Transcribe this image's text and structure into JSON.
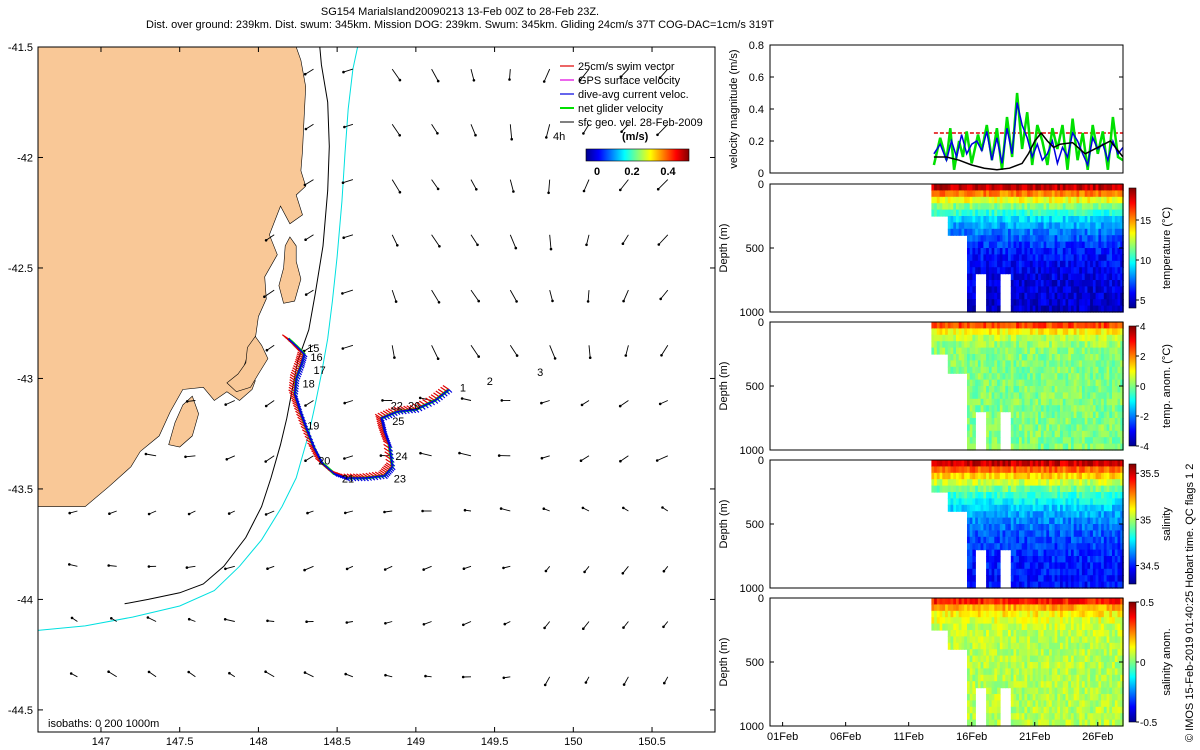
{
  "header": {
    "title_line1": "SG154 MarialsIand20090213 13-Feb 00Z to 28-Feb 23Z.",
    "title_line2": "Dist. over ground: 239km. Dist. swum: 345km. Mission DOG: 239km. Swum: 345km. Gliding 24cm/s 37T COG-DAC=1cm/s 319T"
  },
  "credit": "© IMOS 15-Feb-2019 01:40:25 Hobart time. QC flags 1 2",
  "colors": {
    "land": "#F9C897",
    "isobath_200": "#000000",
    "isobath_1000": "#00E0E0",
    "swim_vector": "#E00000",
    "gps_velocity": "#E000E0",
    "current": "#0000E0",
    "glider_velocity": "#00E000",
    "sfc_geo": "#000000"
  },
  "chart_data": [
    {
      "type": "map",
      "xlim": [
        146.6,
        150.9
      ],
      "ylim": [
        -44.6,
        -41.5
      ],
      "xticks": [
        147,
        147.5,
        148,
        148.5,
        149,
        149.5,
        150,
        150.5
      ],
      "xtick_labels": [
        "147",
        "147.5",
        "148",
        "148.5",
        "149",
        "149.5",
        "150",
        "150.5"
      ],
      "yticks": [
        -41.5,
        -42,
        -42.5,
        -43,
        -43.5,
        -44,
        -44.5
      ],
      "ytick_labels": [
        "-41.5",
        "-42",
        "-42.5",
        "-43",
        "-43.5",
        "-44",
        "-44.5"
      ],
      "legend": [
        {
          "label": "25cm/s swim vector",
          "color": "#E00000"
        },
        {
          "label": "GPS surface velocity",
          "color": "#E000E0"
        },
        {
          "label": "dive-avg current veloc.",
          "color": "#0000E0"
        },
        {
          "label": "net glider velocity",
          "color": "#00E000"
        },
        {
          "label": "sfc geo. vel. 28-Feb-2009",
          "color": "#000000"
        }
      ],
      "scale_arrow_label": "4h",
      "colorbar": {
        "label": "(m/s)",
        "ticks": [
          0,
          0.2,
          0.4
        ],
        "tick_labels": [
          "0",
          "0.2",
          "0.4"
        ],
        "range": [
          0,
          0.5
        ]
      },
      "isobaths_label": "isobaths: 0   200  1000m",
      "track": [
        [
          148.19,
          -42.82
        ],
        [
          148.25,
          -42.86
        ],
        [
          148.29,
          -42.89
        ],
        [
          148.27,
          -42.94
        ],
        [
          148.24,
          -43.0
        ],
        [
          148.23,
          -43.07
        ],
        [
          148.26,
          -43.14
        ],
        [
          148.3,
          -43.22
        ],
        [
          148.35,
          -43.31
        ],
        [
          148.4,
          -43.38
        ],
        [
          148.48,
          -43.43
        ],
        [
          148.56,
          -43.45
        ],
        [
          148.68,
          -43.45
        ],
        [
          148.8,
          -43.44
        ],
        [
          148.85,
          -43.4
        ],
        [
          148.83,
          -43.3
        ],
        [
          148.8,
          -43.24
        ],
        [
          148.78,
          -43.18
        ],
        [
          148.88,
          -43.15
        ],
        [
          149.0,
          -43.14
        ],
        [
          149.12,
          -43.1
        ],
        [
          149.21,
          -43.05
        ]
      ],
      "day_labels": [
        {
          "text": "1",
          "lon": 149.28,
          "lat": -43.06
        },
        {
          "text": "2",
          "lon": 149.45,
          "lat": -43.03
        },
        {
          "text": "3",
          "lon": 149.77,
          "lat": -42.99
        },
        {
          "text": "15",
          "lon": 148.31,
          "lat": -42.88
        },
        {
          "text": "16",
          "lon": 148.33,
          "lat": -42.92
        },
        {
          "text": "17",
          "lon": 148.35,
          "lat": -42.98
        },
        {
          "text": "18",
          "lon": 148.28,
          "lat": -43.04
        },
        {
          "text": "19",
          "lon": 148.31,
          "lat": -43.23
        },
        {
          "text": "20",
          "lon": 148.38,
          "lat": -43.39
        },
        {
          "text": "21",
          "lon": 148.53,
          "lat": -43.47
        },
        {
          "text": "22",
          "lon": 148.84,
          "lat": -43.14
        },
        {
          "text": "23",
          "lon": 148.86,
          "lat": -43.47
        },
        {
          "text": "24",
          "lon": 148.87,
          "lat": -43.37
        },
        {
          "text": "25",
          "lon": 148.85,
          "lat": -43.21
        },
        {
          "text": "26",
          "lon": 148.95,
          "lat": -43.14
        }
      ],
      "coast": [
        [
          146.6,
          -41.5
        ],
        [
          148.24,
          -41.5
        ],
        [
          148.27,
          -41.56
        ],
        [
          148.3,
          -41.68
        ],
        [
          148.29,
          -41.82
        ],
        [
          148.28,
          -41.97
        ],
        [
          148.27,
          -42.06
        ],
        [
          148.3,
          -42.13
        ],
        [
          148.24,
          -42.17
        ],
        [
          148.28,
          -42.26
        ],
        [
          148.2,
          -42.3
        ],
        [
          148.14,
          -42.22
        ],
        [
          148.07,
          -42.35
        ],
        [
          148.12,
          -42.44
        ],
        [
          148.04,
          -42.54
        ],
        [
          148.05,
          -42.64
        ],
        [
          148.0,
          -42.72
        ],
        [
          147.98,
          -42.82
        ],
        [
          147.94,
          -42.88
        ],
        [
          147.9,
          -42.96
        ],
        [
          147.98,
          -43.01
        ],
        [
          147.96,
          -43.05
        ],
        [
          147.88,
          -43.1
        ],
        [
          147.8,
          -43.06
        ],
        [
          147.72,
          -43.1
        ],
        [
          147.65,
          -43.04
        ],
        [
          147.52,
          -43.05
        ],
        [
          147.44,
          -43.15
        ],
        [
          147.37,
          -43.26
        ],
        [
          147.25,
          -43.33
        ],
        [
          147.19,
          -43.4
        ],
        [
          147.05,
          -43.49
        ],
        [
          146.9,
          -43.58
        ],
        [
          146.6,
          -43.58
        ]
      ],
      "islands": [
        [
          [
            148.17,
            -42.4
          ],
          [
            148.2,
            -42.36
          ],
          [
            148.24,
            -42.4
          ],
          [
            148.24,
            -42.47
          ],
          [
            148.27,
            -42.55
          ],
          [
            148.23,
            -42.65
          ],
          [
            148.16,
            -42.66
          ],
          [
            148.13,
            -42.58
          ],
          [
            148.16,
            -42.5
          ]
        ],
        [
          [
            147.93,
            -42.86
          ],
          [
            147.98,
            -42.81
          ],
          [
            148.02,
            -42.85
          ],
          [
            148.06,
            -42.91
          ],
          [
            148.0,
            -42.98
          ],
          [
            147.95,
            -43.04
          ],
          [
            147.86,
            -43.06
          ],
          [
            147.8,
            -43.02
          ],
          [
            147.87,
            -42.98
          ],
          [
            147.92,
            -42.93
          ]
        ],
        [
          [
            147.52,
            -43.12
          ],
          [
            147.58,
            -43.08
          ],
          [
            147.62,
            -43.16
          ],
          [
            147.58,
            -43.26
          ],
          [
            147.5,
            -43.31
          ],
          [
            147.43,
            -43.3
          ],
          [
            147.47,
            -43.2
          ]
        ]
      ],
      "isobath_200": [
        [
          147.15,
          -44.02
        ],
        [
          147.3,
          -44.0
        ],
        [
          147.5,
          -43.97
        ],
        [
          147.65,
          -43.93
        ],
        [
          147.78,
          -43.85
        ],
        [
          147.92,
          -43.72
        ],
        [
          148.02,
          -43.58
        ],
        [
          148.08,
          -43.45
        ],
        [
          148.14,
          -43.3
        ],
        [
          148.18,
          -43.18
        ],
        [
          148.22,
          -43.03
        ],
        [
          148.25,
          -42.92
        ],
        [
          148.32,
          -42.78
        ],
        [
          148.36,
          -42.62
        ],
        [
          148.41,
          -42.4
        ],
        [
          148.44,
          -42.15
        ],
        [
          148.45,
          -41.95
        ],
        [
          148.44,
          -41.75
        ],
        [
          148.4,
          -41.58
        ],
        [
          148.39,
          -41.5
        ]
      ],
      "isobath_1000": [
        [
          146.6,
          -44.14
        ],
        [
          146.9,
          -44.12
        ],
        [
          147.2,
          -44.08
        ],
        [
          147.5,
          -44.03
        ],
        [
          147.72,
          -43.96
        ],
        [
          147.88,
          -43.85
        ],
        [
          148.02,
          -43.73
        ],
        [
          148.15,
          -43.58
        ],
        [
          148.24,
          -43.45
        ],
        [
          148.28,
          -43.35
        ],
        [
          148.32,
          -43.25
        ],
        [
          148.36,
          -43.12
        ],
        [
          148.4,
          -42.98
        ],
        [
          148.44,
          -42.82
        ],
        [
          148.47,
          -42.65
        ],
        [
          148.5,
          -42.45
        ],
        [
          148.53,
          -42.2
        ],
        [
          148.55,
          -41.98
        ],
        [
          148.57,
          -41.78
        ],
        [
          148.6,
          -41.6
        ],
        [
          148.63,
          -41.5
        ]
      ]
    },
    {
      "type": "line",
      "xlim": [
        0,
        28
      ],
      "ylim": [
        0,
        0.8
      ],
      "ylabel": "velocity magnitude (m/s)",
      "yticks": [
        0,
        0.2,
        0.4,
        0.6,
        0.8
      ],
      "ytick_labels": [
        "0",
        "0.2",
        "0.4",
        "0.6",
        "0.8"
      ],
      "series": [
        {
          "name": "swim",
          "color": "#E00000",
          "x": [
            13,
            28
          ],
          "values": [
            0.25,
            0.25
          ]
        },
        {
          "name": "glider",
          "color": "#00E000",
          "x": [
            13.0,
            13.5,
            14.0,
            14.3,
            14.6,
            15.0,
            15.3,
            15.6,
            16.0,
            16.5,
            16.8,
            17.2,
            17.6,
            18.0,
            18.4,
            18.8,
            19.2,
            19.6,
            20.0,
            20.4,
            20.8,
            21.2,
            21.6,
            22.0,
            22.4,
            22.8,
            23.2,
            23.6,
            24.0,
            24.4,
            24.8,
            25.2,
            25.6,
            26.0,
            26.4,
            26.8,
            27.2,
            27.6,
            28.0
          ],
          "values": [
            0.05,
            0.22,
            0.08,
            0.28,
            0.02,
            0.2,
            0.1,
            0.26,
            0.06,
            0.24,
            0.14,
            0.3,
            0.08,
            0.28,
            0.02,
            0.35,
            0.1,
            0.5,
            0.15,
            0.38,
            0.05,
            0.3,
            0.2,
            0.05,
            0.28,
            0.15,
            0.3,
            0.02,
            0.34,
            0.08,
            0.25,
            0.02,
            0.3,
            0.12,
            0.26,
            0.02,
            0.35,
            0.1,
            0.08
          ]
        },
        {
          "name": "current",
          "color": "#0000E0",
          "x": [
            13.0,
            13.5,
            14.0,
            14.4,
            14.8,
            15.2,
            15.6,
            16.0,
            16.4,
            16.8,
            17.2,
            17.6,
            18.0,
            18.4,
            18.8,
            19.2,
            19.6,
            20.0,
            20.4,
            20.8,
            21.2,
            21.6,
            22.0,
            22.4,
            22.8,
            23.2,
            23.6,
            24.0,
            24.4,
            24.8,
            25.2,
            25.6,
            26.0,
            26.4,
            26.8,
            27.2,
            27.6,
            28.0
          ],
          "values": [
            0.12,
            0.18,
            0.08,
            0.2,
            0.1,
            0.24,
            0.12,
            0.18,
            0.2,
            0.14,
            0.26,
            0.08,
            0.22,
            0.06,
            0.28,
            0.12,
            0.44,
            0.3,
            0.22,
            0.1,
            0.18,
            0.08,
            0.12,
            0.2,
            0.06,
            0.16,
            0.1,
            0.25,
            0.2,
            0.12,
            0.05,
            0.22,
            0.15,
            0.18,
            0.08,
            0.2,
            0.12,
            0.16
          ]
        },
        {
          "name": "sfc_geo",
          "color": "#000000",
          "x": [
            13,
            14,
            15,
            16,
            17,
            18,
            19,
            20,
            20.5,
            21,
            21.5,
            22,
            22.5,
            23,
            24,
            25,
            26,
            27,
            28
          ],
          "values": [
            0.1,
            0.1,
            0.08,
            0.05,
            0.03,
            0.02,
            0.03,
            0.06,
            0.12,
            0.2,
            0.25,
            0.2,
            0.16,
            0.18,
            0.19,
            0.12,
            0.16,
            0.2,
            0.1
          ]
        }
      ]
    },
    {
      "type": "heatmap",
      "variable": "temperature",
      "ylabel": "Depth (m)",
      "cbar_label": "temperature (°C)",
      "ylim": [
        0,
        1000
      ],
      "yticks": [
        0,
        500,
        1000
      ],
      "ytick_labels": [
        "0",
        "500",
        "1000"
      ],
      "clim": [
        4,
        19
      ],
      "cticks": [
        5,
        10,
        15
      ],
      "ctick_labels": [
        "5",
        "10",
        "15"
      ],
      "profile": {
        "surface": 18,
        "deep": 5,
        "scale": 220
      }
    },
    {
      "type": "heatmap",
      "variable": "temp. anom.",
      "ylabel": "Depth (m)",
      "cbar_label": "temp. anom. (°C)",
      "ylim": [
        0,
        1000
      ],
      "yticks": [
        0,
        500,
        1000
      ],
      "ytick_labels": [
        "0",
        "500",
        "1000"
      ],
      "clim": [
        -4,
        4
      ],
      "cticks": [
        -4,
        -2,
        0,
        2,
        4
      ],
      "ctick_labels": [
        "-4",
        "-2",
        "0",
        "2",
        "4"
      ],
      "profile": {
        "surface": 2.5,
        "deep": 0,
        "scale": 60
      }
    },
    {
      "type": "heatmap",
      "variable": "salinity",
      "ylabel": "Depth (m)",
      "cbar_label": "salinity",
      "ylim": [
        0,
        1000
      ],
      "yticks": [
        0,
        500,
        1000
      ],
      "ytick_labels": [
        "0",
        "500",
        "1000"
      ],
      "clim": [
        34.3,
        35.6
      ],
      "cticks": [
        34.5,
        35,
        35.5
      ],
      "ctick_labels": [
        "34.5",
        "35",
        "35.5"
      ],
      "profile": {
        "surface": 35.5,
        "deep": 34.45,
        "scale": 260
      }
    },
    {
      "type": "heatmap",
      "variable": "salinity anom.",
      "ylabel": "Depth (m)",
      "cbar_label": "salinity anom.",
      "ylim": [
        0,
        1000
      ],
      "yticks": [
        0,
        500,
        1000
      ],
      "ytick_labels": [
        "0",
        "500",
        "1000"
      ],
      "clim": [
        -0.5,
        0.5
      ],
      "cticks": [
        0.5,
        0,
        -0.5
      ],
      "ctick_labels": [
        "0.5",
        "0",
        "-0.5"
      ],
      "profile": {
        "surface": 0.35,
        "deep": 0.05,
        "scale": 80
      },
      "xticks": [
        1,
        6,
        11,
        16,
        21,
        26
      ],
      "xtick_labels": [
        "01Feb",
        "06Feb",
        "11Feb",
        "16Feb",
        "21Feb",
        "26Feb"
      ]
    }
  ]
}
